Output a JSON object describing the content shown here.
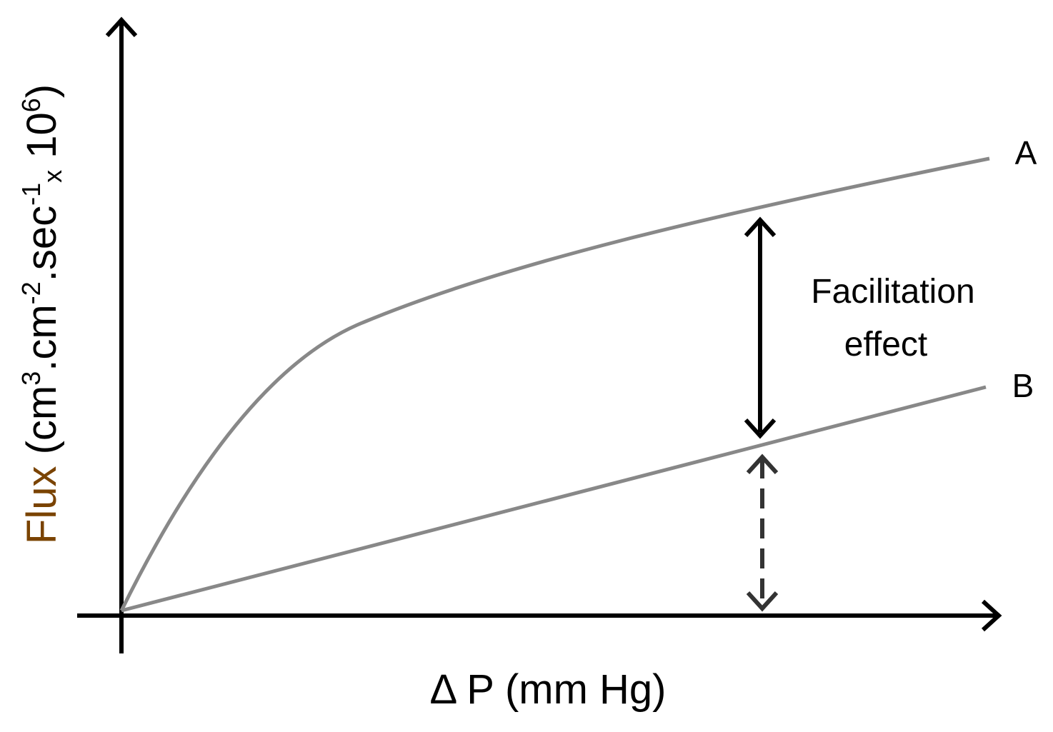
{
  "axes": {
    "y_label": [
      "Flux",
      " (cm",
      "3",
      ".cm",
      "-2",
      ".sec",
      "-1",
      "x",
      " 10",
      "6",
      ")"
    ],
    "x_label": "Δ P (mm Hg)"
  },
  "curves": [
    {
      "label": "A"
    },
    {
      "label": "B"
    }
  ],
  "annotation": {
    "lines": [
      "Facilitation",
      "effect"
    ]
  }
}
